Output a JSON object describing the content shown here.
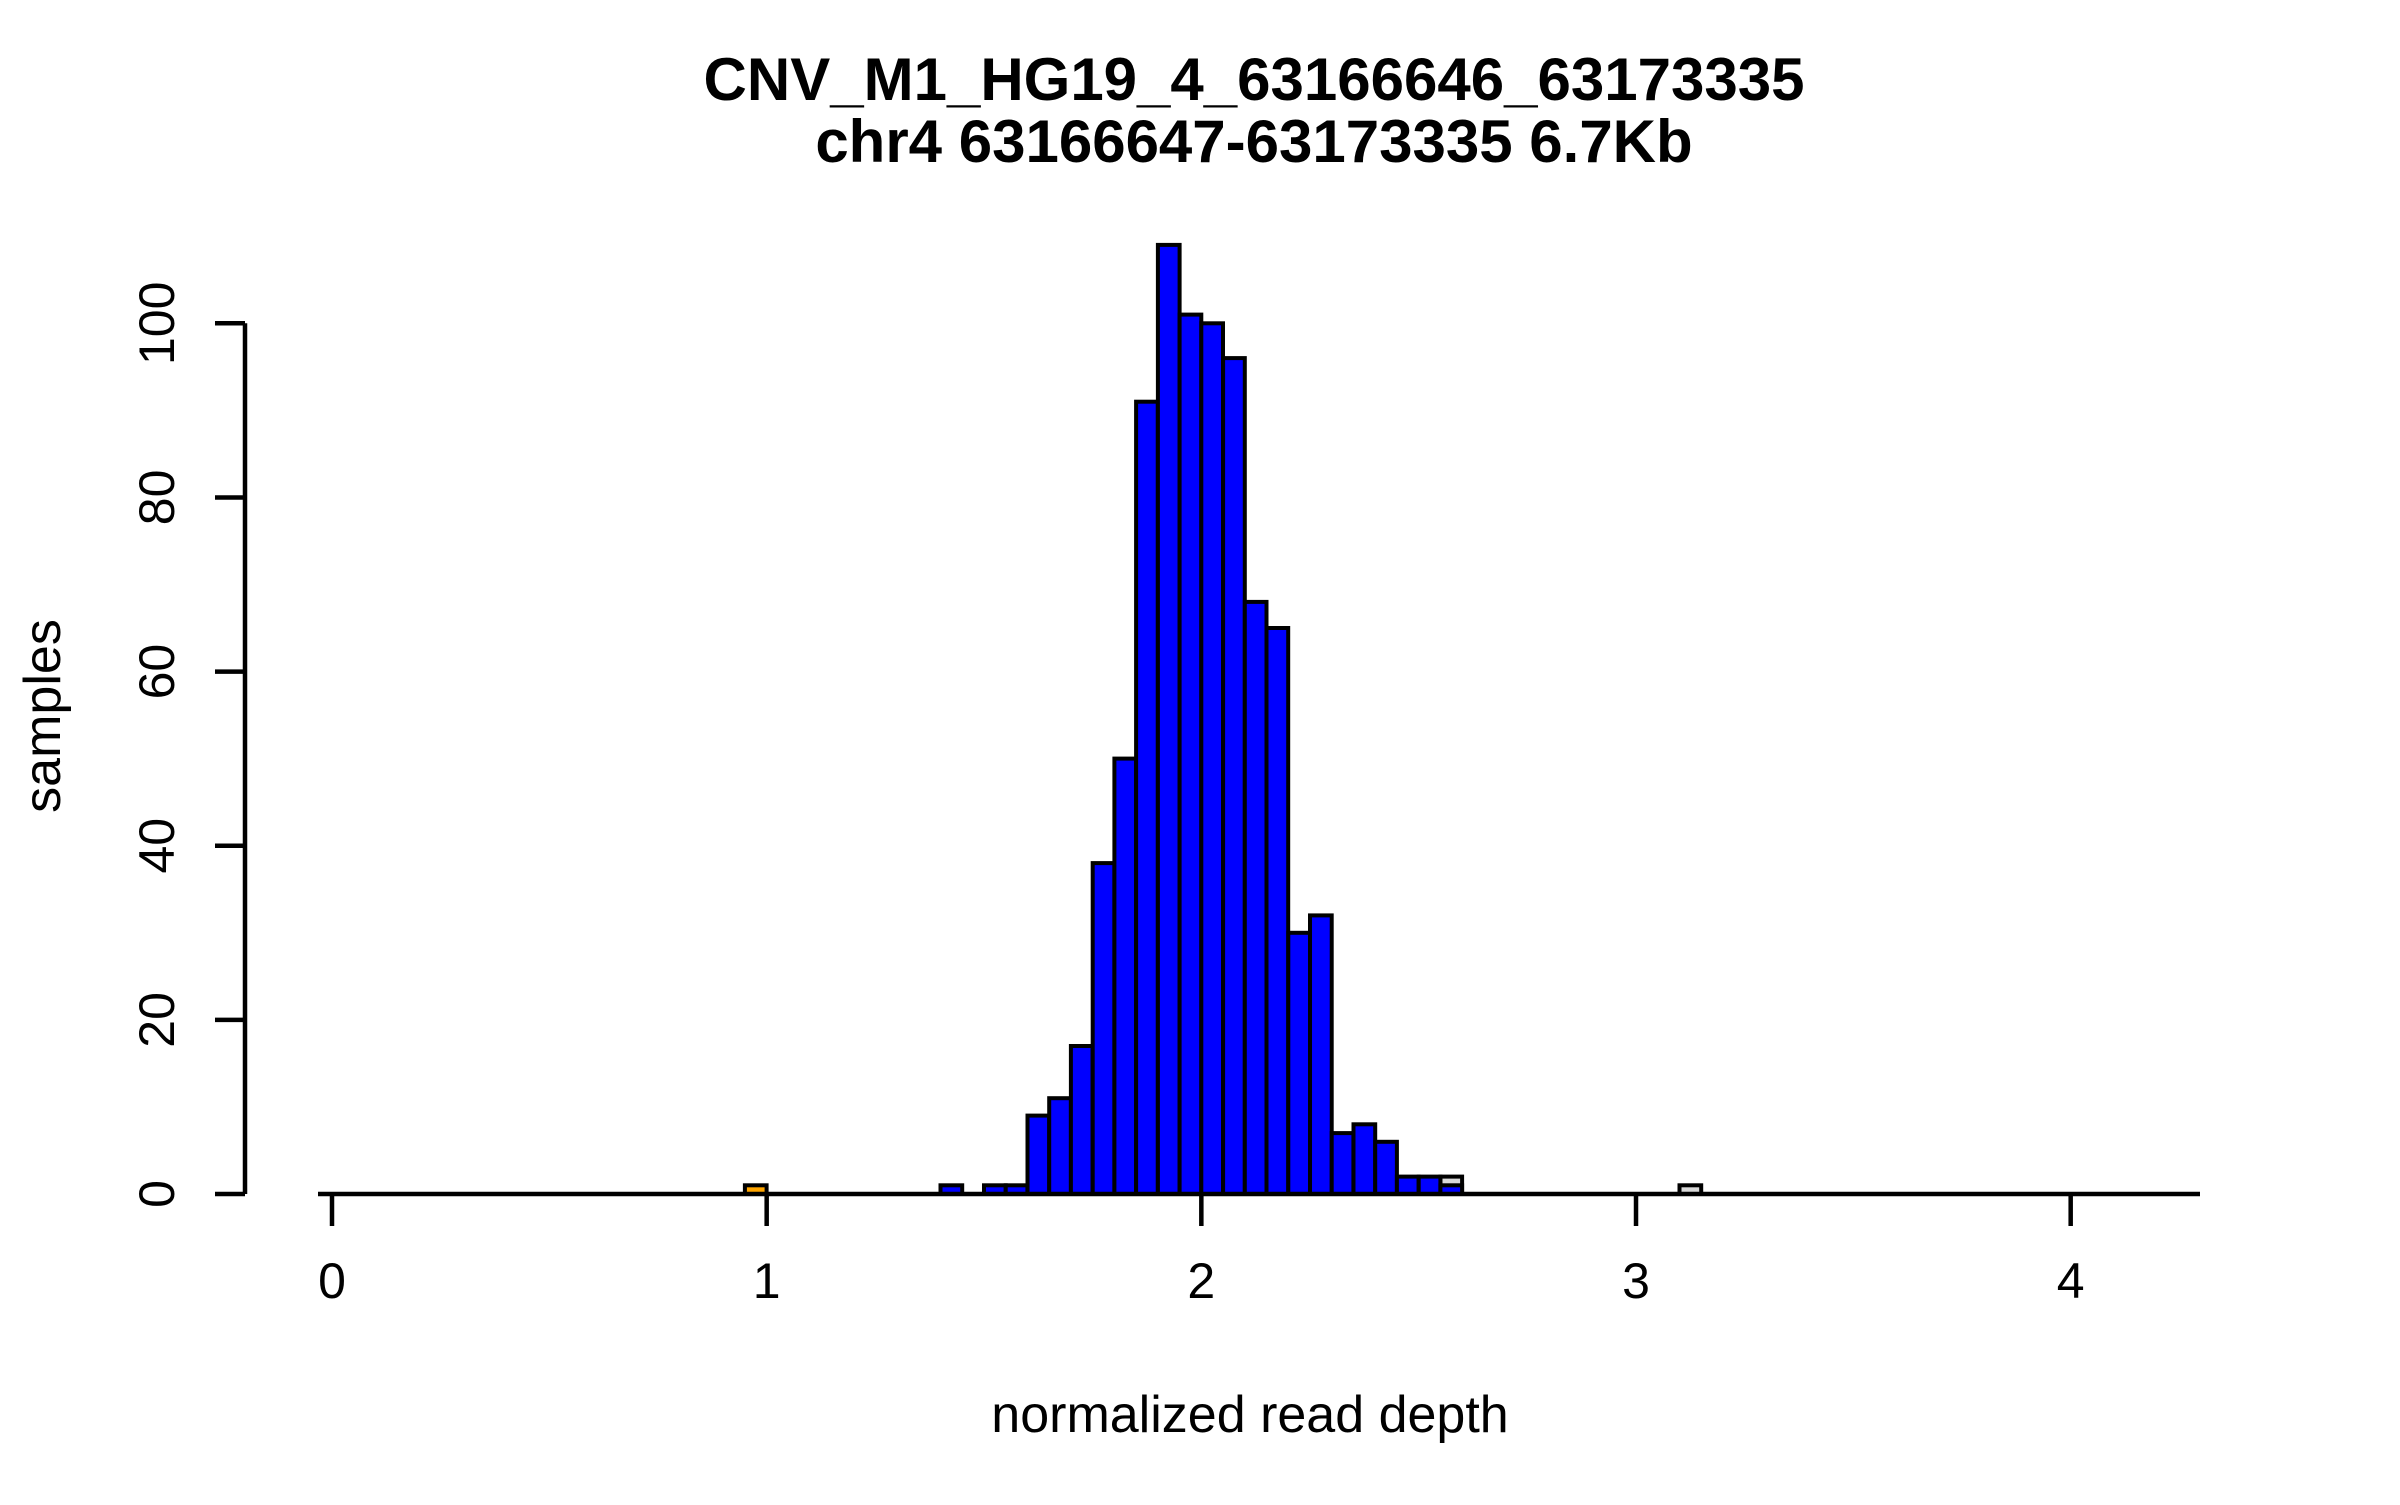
{
  "chart_data": {
    "type": "bar",
    "subtype": "histogram",
    "title_line1": "CNV_M1_HG19_4_63166646_63173335",
    "title_line2": "chr4 63166647-63173335 6.7Kb",
    "xlabel": "normalized read depth",
    "ylabel": "samples",
    "x_ticks": [
      "0",
      "1",
      "2",
      "3",
      "4"
    ],
    "x_tick_values": [
      0,
      1,
      2,
      3,
      4
    ],
    "y_ticks": [
      "0",
      "20",
      "40",
      "60",
      "80",
      "100"
    ],
    "y_tick_values": [
      0,
      20,
      40,
      60,
      80,
      100
    ],
    "xlim": [
      -0.03,
      4.3
    ],
    "ylim": [
      0,
      109
    ],
    "bin_width": 0.05,
    "grid": "off",
    "legend": "none",
    "colors": {
      "blue": "#0000FF",
      "orange": "#FFA500",
      "gray": "#D9D9D9",
      "axis": "#000000"
    },
    "bars": [
      {
        "bin_start": 2.55,
        "count": 2,
        "series": "gray"
      },
      {
        "bin_start": 3.1,
        "count": 1,
        "series": "gray"
      },
      {
        "bin_start": 0.95,
        "count": 1,
        "series": "orange"
      },
      {
        "bin_start": 1.4,
        "count": 1,
        "series": "blue"
      },
      {
        "bin_start": 1.45,
        "count": 0,
        "series": "blue"
      },
      {
        "bin_start": 1.5,
        "count": 1,
        "series": "blue"
      },
      {
        "bin_start": 1.55,
        "count": 1,
        "series": "blue"
      },
      {
        "bin_start": 1.6,
        "count": 9,
        "series": "blue"
      },
      {
        "bin_start": 1.65,
        "count": 11,
        "series": "blue"
      },
      {
        "bin_start": 1.7,
        "count": 17,
        "series": "blue"
      },
      {
        "bin_start": 1.75,
        "count": 38,
        "series": "blue"
      },
      {
        "bin_start": 1.8,
        "count": 50,
        "series": "blue"
      },
      {
        "bin_start": 1.85,
        "count": 91,
        "series": "blue"
      },
      {
        "bin_start": 1.9,
        "count": 109,
        "series": "blue"
      },
      {
        "bin_start": 1.95,
        "count": 101,
        "series": "blue"
      },
      {
        "bin_start": 2.0,
        "count": 100,
        "series": "blue"
      },
      {
        "bin_start": 2.05,
        "count": 96,
        "series": "blue"
      },
      {
        "bin_start": 2.1,
        "count": 68,
        "series": "blue"
      },
      {
        "bin_start": 2.15,
        "count": 65,
        "series": "blue"
      },
      {
        "bin_start": 2.2,
        "count": 30,
        "series": "blue"
      },
      {
        "bin_start": 2.25,
        "count": 32,
        "series": "blue"
      },
      {
        "bin_start": 2.3,
        "count": 7,
        "series": "blue"
      },
      {
        "bin_start": 2.35,
        "count": 8,
        "series": "blue"
      },
      {
        "bin_start": 2.4,
        "count": 6,
        "series": "blue"
      },
      {
        "bin_start": 2.45,
        "count": 2,
        "series": "blue"
      },
      {
        "bin_start": 2.5,
        "count": 2,
        "series": "blue"
      },
      {
        "bin_start": 2.55,
        "count": 1,
        "series": "blue"
      }
    ]
  }
}
